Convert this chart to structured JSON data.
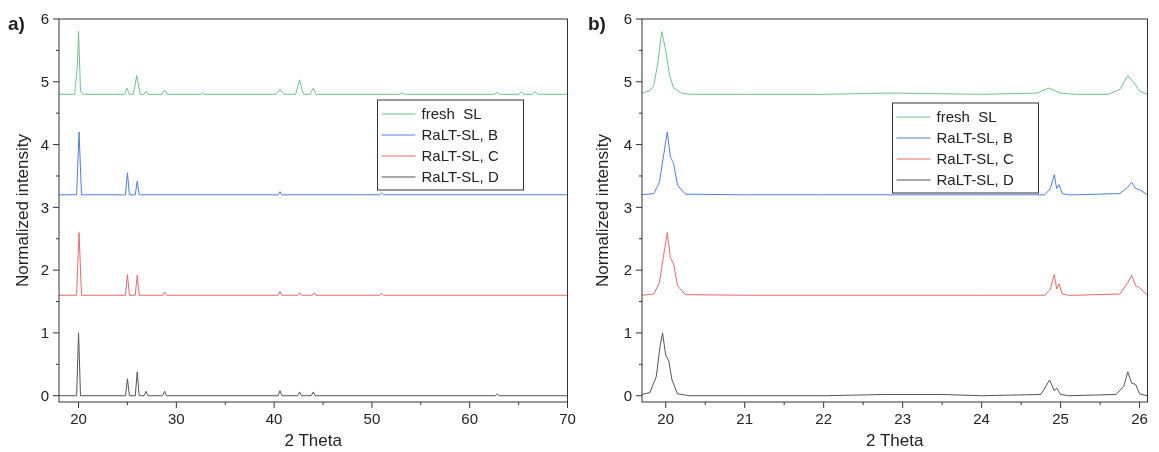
{
  "chart_data": [
    {
      "type": "line",
      "title": "a)",
      "xlabel": "2 Theta",
      "ylabel": "Normalized intensity",
      "xlim": [
        18,
        70
      ],
      "ylim": [
        -0.1,
        6
      ],
      "xticks": [
        20,
        {
          "value": 25,
          "label": null
        },
        30,
        {
          "value": 35,
          "label": null
        },
        40,
        {
          "value": 45,
          "label": null
        },
        50,
        {
          "value": 55,
          "label": null
        },
        60,
        {
          "value": 65,
          "label": null
        },
        70
      ],
      "yticks": [
        0,
        {
          "value": 0.5,
          "label": null
        },
        1,
        {
          "value": 1.5,
          "label": null
        },
        2,
        {
          "value": 2.5,
          "label": null
        },
        3,
        {
          "value": 3.5,
          "label": null
        },
        4,
        {
          "value": 4.5,
          "label": null
        },
        5,
        {
          "value": 5.5,
          "label": null
        },
        6
      ],
      "legend": "top right",
      "grid": false,
      "line_style": "solid",
      "marker": "none",
      "series": [
        {
          "name": "fresh  SL",
          "color": "#6cc48e",
          "x": [
            18,
            19.6,
            19.9,
            20.0,
            20.2,
            20.5,
            24.7,
            24.95,
            25.2,
            25.6,
            25.95,
            26.3,
            26.7,
            26.9,
            27.1,
            28.5,
            28.8,
            29.1,
            32.5,
            32.7,
            32.9,
            40.2,
            40.6,
            41.0,
            42.2,
            42.6,
            43.0,
            43.7,
            44.0,
            44.3,
            52.8,
            53.1,
            53.4,
            62.5,
            62.8,
            63.1,
            65.0,
            65.3,
            65.6,
            66.4,
            66.7,
            67.0,
            70
          ],
          "values": [
            4.8,
            4.8,
            5.3,
            5.8,
            4.85,
            4.8,
            4.8,
            4.9,
            4.8,
            4.8,
            5.1,
            4.8,
            4.8,
            4.85,
            4.8,
            4.8,
            4.87,
            4.8,
            4.8,
            4.83,
            4.8,
            4.8,
            4.88,
            4.8,
            4.8,
            5.03,
            4.8,
            4.8,
            4.9,
            4.8,
            4.8,
            4.82,
            4.8,
            4.8,
            4.83,
            4.8,
            4.8,
            4.84,
            4.8,
            4.8,
            4.84,
            4.8,
            4.8
          ]
        },
        {
          "name": "RaLT-SL, B",
          "color": "#4d7fe0",
          "x": [
            18,
            19.8,
            20.05,
            20.3,
            24.8,
            25.0,
            25.2,
            25.8,
            26.0,
            26.2,
            40.4,
            40.6,
            40.8,
            50.8,
            51.0,
            51.2,
            70
          ],
          "values": [
            3.2,
            3.2,
            4.2,
            3.2,
            3.2,
            3.55,
            3.2,
            3.2,
            3.42,
            3.2,
            3.2,
            3.25,
            3.2,
            3.2,
            3.23,
            3.2,
            3.2
          ]
        },
        {
          "name": "RaLT-SL, C",
          "color": "#e86a6a",
          "x": [
            18,
            19.8,
            20.05,
            20.3,
            24.8,
            25.0,
            25.2,
            25.8,
            26.0,
            26.2,
            28.6,
            28.8,
            29.0,
            40.4,
            40.6,
            40.8,
            42.4,
            42.6,
            42.8,
            43.9,
            44.1,
            44.3,
            50.8,
            51.0,
            51.2,
            70
          ],
          "values": [
            1.6,
            1.6,
            2.6,
            1.6,
            1.6,
            1.93,
            1.6,
            1.6,
            1.92,
            1.6,
            1.6,
            1.65,
            1.6,
            1.6,
            1.66,
            1.6,
            1.6,
            1.64,
            1.6,
            1.6,
            1.64,
            1.6,
            1.6,
            1.63,
            1.6,
            1.6
          ]
        },
        {
          "name": "RaLT-SL, D",
          "color": "#555555",
          "x": [
            18,
            19.8,
            20.0,
            20.2,
            24.8,
            25.0,
            25.2,
            25.8,
            26.0,
            26.2,
            26.7,
            26.9,
            27.1,
            28.6,
            28.8,
            29.0,
            40.4,
            40.6,
            40.8,
            42.4,
            42.6,
            42.8,
            43.8,
            44.0,
            44.2,
            62.6,
            62.8,
            63.0,
            70
          ],
          "values": [
            0,
            0,
            1.0,
            0,
            0,
            0.27,
            0,
            0,
            0.38,
            0,
            0,
            0.07,
            0,
            0,
            0.07,
            0,
            0,
            0.08,
            0,
            0,
            0.06,
            0,
            0,
            0.06,
            0,
            0,
            0.03,
            0,
            0
          ]
        }
      ]
    },
    {
      "type": "line",
      "title": "b)",
      "xlabel": "2 Theta",
      "ylabel": "Normalized intensity",
      "xlim": [
        19.7,
        26.1
      ],
      "ylim": [
        -0.1,
        6
      ],
      "xticks": [
        20,
        {
          "value": 20.5,
          "label": null
        },
        21,
        {
          "value": 21.5,
          "label": null
        },
        22,
        {
          "value": 22.5,
          "label": null
        },
        23,
        {
          "value": 23.5,
          "label": null
        },
        24,
        {
          "value": 24.5,
          "label": null
        },
        25,
        {
          "value": 25.5,
          "label": null
        },
        26
      ],
      "yticks": [
        0,
        {
          "value": 0.5,
          "label": null
        },
        1,
        {
          "value": 1.5,
          "label": null
        },
        2,
        {
          "value": 2.5,
          "label": null
        },
        3,
        {
          "value": 3.5,
          "label": null
        },
        4,
        {
          "value": 4.5,
          "label": null
        },
        5,
        {
          "value": 5.5,
          "label": null
        },
        6
      ],
      "legend": "right",
      "grid": false,
      "line_style": "solid",
      "marker": "none",
      "series": [
        {
          "name": "fresh  SL",
          "color": "#6cc48e",
          "x": [
            19.7,
            19.8,
            19.85,
            19.9,
            19.95,
            20.0,
            20.05,
            20.1,
            20.2,
            20.3,
            21,
            22,
            22.8,
            23.5,
            24.0,
            24.7,
            24.85,
            25.0,
            25.2,
            25.6,
            25.75,
            25.85,
            25.95,
            26.0,
            26.1
          ],
          "values": [
            4.82,
            4.86,
            4.95,
            5.3,
            5.8,
            5.5,
            5.1,
            4.9,
            4.82,
            4.8,
            4.8,
            4.8,
            4.82,
            4.81,
            4.8,
            4.82,
            4.9,
            4.82,
            4.8,
            4.8,
            4.88,
            5.1,
            4.95,
            4.85,
            4.8
          ]
        },
        {
          "name": "RaLT-SL, B",
          "color": "#4d7fe0",
          "x": [
            19.7,
            19.85,
            19.92,
            19.97,
            20.02,
            20.06,
            20.1,
            20.15,
            20.25,
            21,
            22,
            23,
            24,
            24.8,
            24.87,
            24.92,
            24.95,
            24.98,
            25.02,
            25.1,
            25.2,
            25.75,
            25.85,
            25.9,
            25.95,
            26.0,
            26.1
          ],
          "values": [
            3.2,
            3.22,
            3.4,
            3.8,
            4.2,
            3.8,
            3.7,
            3.35,
            3.21,
            3.2,
            3.2,
            3.2,
            3.2,
            3.2,
            3.3,
            3.52,
            3.3,
            3.36,
            3.22,
            3.2,
            3.2,
            3.22,
            3.32,
            3.4,
            3.3,
            3.28,
            3.2
          ]
        },
        {
          "name": "RaLT-SL, C",
          "color": "#e86a6a",
          "x": [
            19.7,
            19.85,
            19.92,
            19.97,
            20.02,
            20.06,
            20.1,
            20.15,
            20.25,
            21,
            22,
            23,
            24,
            24.8,
            24.87,
            24.92,
            24.95,
            24.98,
            25.02,
            25.1,
            25.2,
            25.75,
            25.85,
            25.9,
            25.95,
            26.0,
            26.1
          ],
          "values": [
            1.6,
            1.62,
            1.8,
            2.2,
            2.6,
            2.2,
            2.1,
            1.75,
            1.61,
            1.6,
            1.6,
            1.6,
            1.6,
            1.6,
            1.7,
            1.93,
            1.7,
            1.78,
            1.62,
            1.6,
            1.6,
            1.62,
            1.8,
            1.92,
            1.75,
            1.72,
            1.6
          ]
        },
        {
          "name": "RaLT-SL, D",
          "color": "#555555",
          "x": [
            19.7,
            19.8,
            19.88,
            19.93,
            19.96,
            20.0,
            20.04,
            20.08,
            20.15,
            20.3,
            21,
            22,
            22.8,
            23.5,
            24,
            24.75,
            24.86,
            24.92,
            24.95,
            25.0,
            25.1,
            25.7,
            25.8,
            25.85,
            25.9,
            25.95,
            26.0,
            26.1
          ],
          "values": [
            0.02,
            0.05,
            0.3,
            0.8,
            1.0,
            0.65,
            0.55,
            0.25,
            0.03,
            0,
            0,
            0,
            0.02,
            0.02,
            0,
            0.02,
            0.25,
            0.08,
            0.12,
            0.02,
            0,
            0.02,
            0.15,
            0.38,
            0.2,
            0.18,
            0.03,
            0
          ]
        }
      ]
    }
  ]
}
